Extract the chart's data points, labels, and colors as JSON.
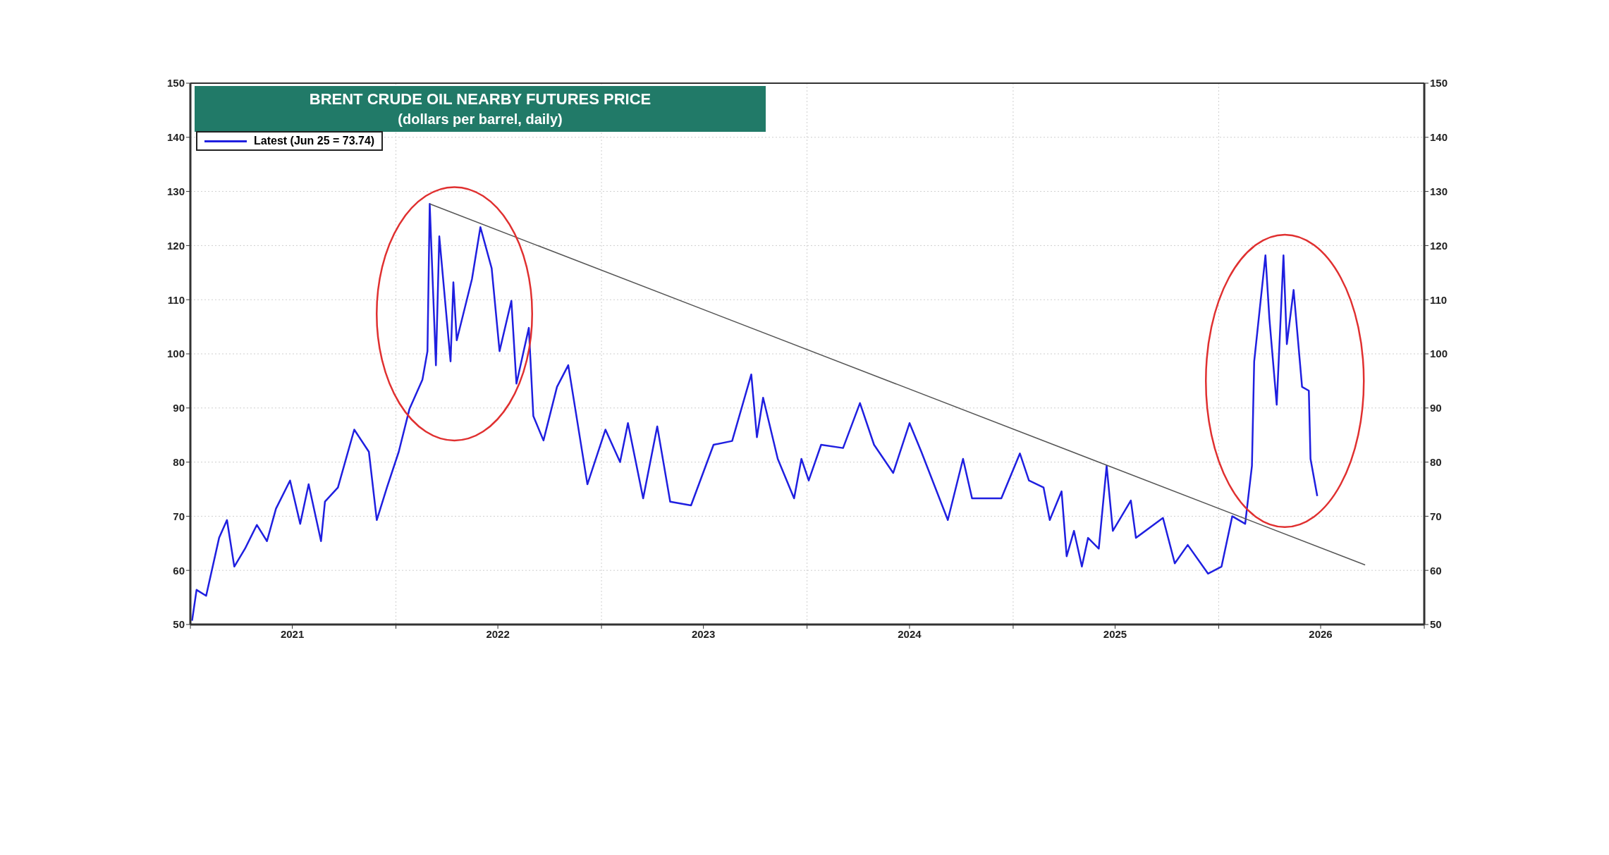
{
  "chart_data": {
    "type": "line",
    "title": "BRENT CRUDE OIL NEARBY FUTURES PRICE",
    "subtitle": "(dollars per barrel, daily)",
    "series": [
      {
        "name": "Latest (Jun 25 = 73.74)",
        "color": "#1f1fe0",
        "x": [
          "2021-01-04",
          "2021-01-12",
          "2021-01-29",
          "2021-02-21",
          "2021-03-07",
          "2021-03-20",
          "2021-04-08",
          "2021-04-29",
          "2021-05-17",
          "2021-06-02",
          "2021-06-27",
          "2021-07-15",
          "2021-07-30",
          "2021-08-21",
          "2021-08-28",
          "2021-09-20",
          "2021-10-19",
          "2021-11-14",
          "2021-11-28",
          "2021-12-16",
          "2022-01-06",
          "2022-01-25",
          "2022-02-17",
          "2022-02-26",
          "2022-03-02",
          "2022-03-13",
          "2022-03-19",
          "2022-04-08",
          "2022-04-13",
          "2022-04-19",
          "2022-05-16",
          "2022-05-31",
          "2022-06-20",
          "2022-07-04",
          "2022-07-25",
          "2022-08-03",
          "2022-08-25",
          "2022-09-02",
          "2022-09-20",
          "2022-10-14",
          "2022-11-03",
          "2022-12-07",
          "2023-01-08",
          "2023-02-03",
          "2023-02-17",
          "2023-03-16",
          "2023-04-10",
          "2023-05-03",
          "2023-06-09",
          "2023-07-19",
          "2023-08-21",
          "2023-09-24",
          "2023-10-04",
          "2023-10-15",
          "2023-11-10",
          "2023-12-09",
          "2023-12-22",
          "2024-01-04",
          "2024-01-26",
          "2024-03-05",
          "2024-04-04",
          "2024-04-29",
          "2024-06-02",
          "2024-07-01",
          "2024-07-22",
          "2024-09-07",
          "2024-10-04",
          "2024-10-20",
          "2024-12-11",
          "2025-01-13",
          "2025-01-29",
          "2025-02-24",
          "2025-03-07",
          "2025-03-28",
          "2025-04-06",
          "2025-04-19",
          "2025-05-03",
          "2025-05-14",
          "2025-06-02",
          "2025-06-16",
          "2025-06-27",
          "2025-07-29",
          "2025-08-07",
          "2025-09-24",
          "2025-10-15",
          "2025-11-07",
          "2025-12-13",
          "2026-01-06",
          "2026-01-25",
          "2026-02-17",
          "2026-03-01",
          "2026-03-05",
          "2026-03-25",
          "2026-04-01",
          "2026-04-14",
          "2026-04-26",
          "2026-05-02",
          "2026-05-14",
          "2026-05-29",
          "2026-06-10",
          "2026-06-13",
          "2026-06-25"
        ],
        "values": [
          50.7,
          56.4,
          55.3,
          66,
          69.3,
          60.7,
          64,
          68.4,
          65.4,
          71.4,
          76.6,
          68.6,
          75.9,
          65.4,
          72.7,
          75.3,
          86,
          81.9,
          69.3,
          75.3,
          81.9,
          89.8,
          95.2,
          100.5,
          127.7,
          97.9,
          121.7,
          98.6,
          113.2,
          102.5,
          113.8,
          123.4,
          115.8,
          100.5,
          109.8,
          94.5,
          104.8,
          88.5,
          84,
          93.9,
          97.9,
          75.9,
          86,
          80,
          87.2,
          73.3,
          86.6,
          72.7,
          72,
          83.2,
          83.9,
          96.2,
          84.6,
          91.9,
          80.6,
          73.3,
          80.6,
          76.6,
          83.2,
          82.6,
          90.9,
          83.2,
          78,
          87.2,
          81.9,
          69.3,
          80.6,
          73.3,
          73.3,
          81.6,
          76.6,
          75.3,
          69.3,
          74.6,
          62.6,
          67.3,
          60.7,
          66,
          64,
          79.3,
          67.3,
          72.9,
          66,
          69.7,
          61.3,
          64.7,
          59.4,
          60.7,
          70,
          68.6,
          79.3,
          98.6,
          118.2,
          106.5,
          90.6,
          118.2,
          101.8,
          111.8,
          93.9,
          93.2,
          80.6,
          73.74
        ]
      },
      {
        "type": "line",
        "color": "#555555",
        "x": [
          "2022-03-02",
          "2026-09-18"
        ],
        "values": [
          127.7,
          61
        ]
      }
    ],
    "xlim": [
      "2021-01-01",
      "2027-01-01"
    ],
    "xticks": [
      {
        "value": "2021-01-01",
        "label": null
      },
      {
        "value": "2021-07-01",
        "label": "2021"
      },
      {
        "value": "2022-01-01",
        "label": null
      },
      {
        "value": "2022-07-01",
        "label": "2022"
      },
      {
        "value": "2023-01-01",
        "label": null
      },
      {
        "value": "2023-07-01",
        "label": "2023"
      },
      {
        "value": "2024-01-01",
        "label": null
      },
      {
        "value": "2024-07-01",
        "label": "2024"
      },
      {
        "value": "2025-01-01",
        "label": null
      },
      {
        "value": "2025-07-01",
        "label": "2025"
      },
      {
        "value": "2026-01-01",
        "label": null
      },
      {
        "value": "2026-07-01",
        "label": "2026"
      },
      {
        "value": "2027-01-01",
        "label": null
      }
    ],
    "ylim": [
      50,
      150
    ],
    "yticks": [
      50,
      60,
      70,
      80,
      90,
      100,
      110,
      120,
      130,
      140,
      150
    ],
    "y2lim": [
      50,
      150
    ],
    "y2ticks": [
      50,
      60,
      70,
      80,
      90,
      100,
      110,
      120,
      130,
      140,
      150
    ],
    "grid": true,
    "legend": "top left"
  }
}
